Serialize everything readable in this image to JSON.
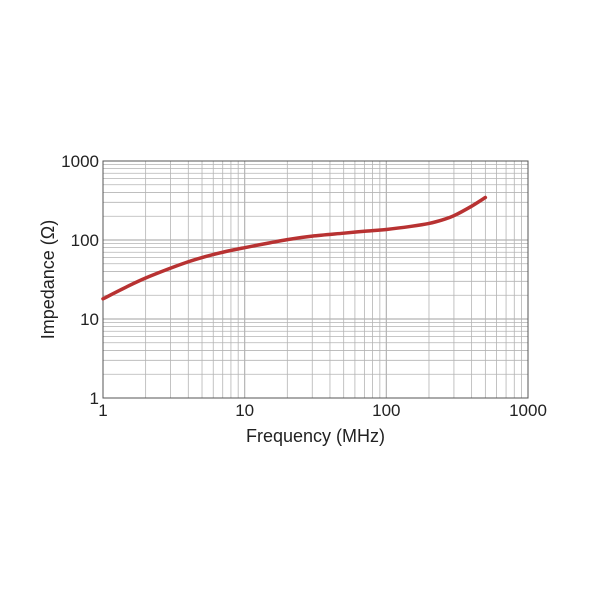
{
  "chart_data": {
    "type": "line",
    "title": "",
    "xlabel": "Frequency (MHz)",
    "ylabel": "Impedance (Ω)",
    "x_scale": "log",
    "y_scale": "log",
    "xlim": [
      1,
      1000
    ],
    "ylim": [
      1,
      1000
    ],
    "x_ticks": [
      "1",
      "10",
      "100",
      "1000"
    ],
    "y_ticks": [
      "1",
      "10",
      "100",
      "1000"
    ],
    "grid": true,
    "legend": "none",
    "colors": {
      "line": "#b83232",
      "grid": "#b4b4b4",
      "frame": "#555555"
    },
    "series": [
      {
        "x": [
          1,
          1.5,
          2,
          3,
          4,
          5,
          7,
          10,
          15,
          20,
          30,
          50,
          70,
          100,
          150,
          200,
          250,
          300,
          400,
          500
        ],
        "y": [
          18,
          26,
          33,
          44,
          53,
          60,
          70,
          80,
          92,
          101,
          112,
          122,
          129,
          136,
          149,
          162,
          180,
          203,
          268,
          345
        ]
      }
    ]
  }
}
